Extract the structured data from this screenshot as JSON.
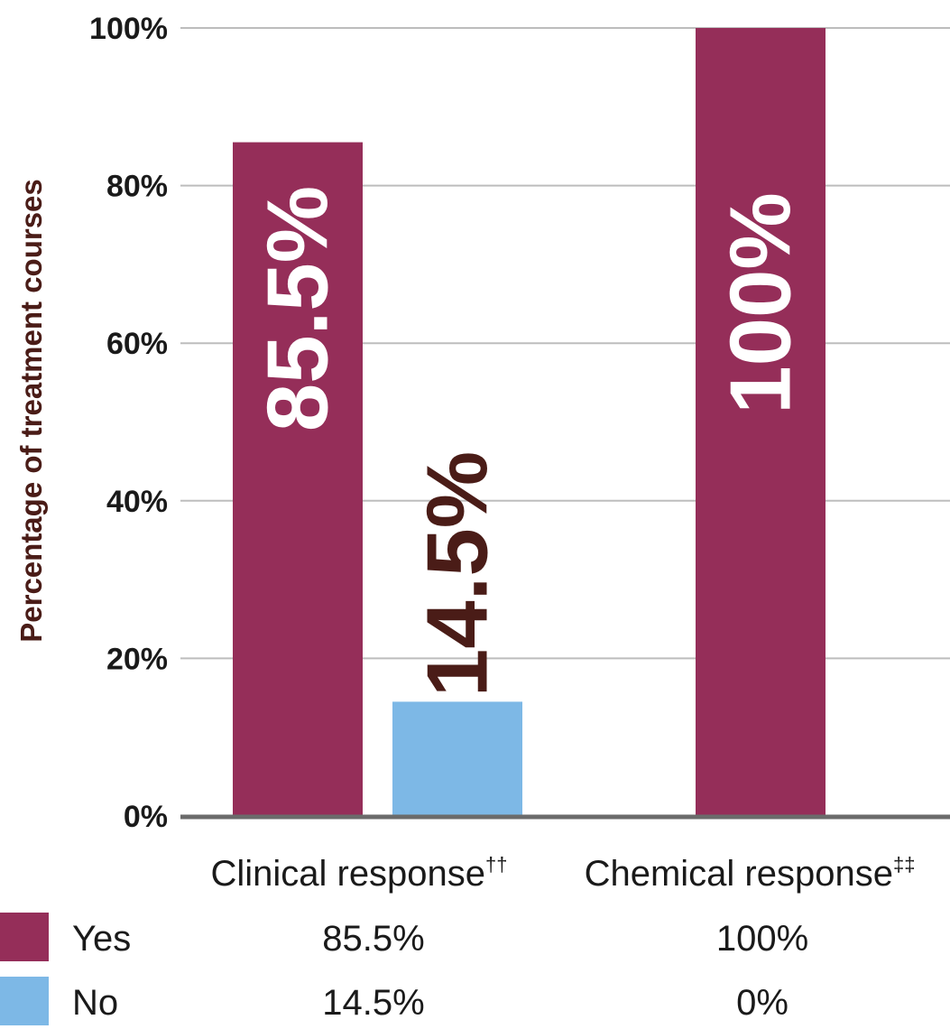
{
  "chart_data": {
    "type": "bar",
    "categories": [
      "Clinical response",
      "Chemical response"
    ],
    "category_superscripts": [
      "††",
      "‡‡"
    ],
    "ylabel": "Percentage of treatment courses",
    "xlabel": "",
    "ylim": [
      0,
      100
    ],
    "yticks": [
      "0%",
      "20%",
      "40%",
      "60%",
      "80%",
      "100%"
    ],
    "ytick_values": [
      0,
      20,
      40,
      60,
      80,
      100
    ],
    "grid": true,
    "series": [
      {
        "name": "Yes",
        "color": "#952e59",
        "values": [
          85.5,
          100
        ],
        "labels": [
          "85.5%",
          "100%"
        ],
        "table_values": [
          "85.5%",
          "100%"
        ]
      },
      {
        "name": "No",
        "color": "#7db8e6",
        "values": [
          14.5,
          0
        ],
        "labels": [
          "14.5%",
          ""
        ],
        "table_values": [
          "14.5%",
          "0%"
        ]
      }
    ]
  }
}
